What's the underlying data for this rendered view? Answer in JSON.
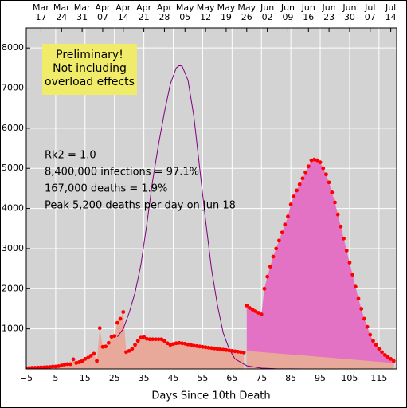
{
  "chart_data": {
    "type": "line",
    "xlabel": "Days Since 10th Death",
    "box_text": "Preliminary!\nNot including\noverload effects",
    "box_color": "#f0ec6a",
    "notes": [
      "Rk2 = 1.0",
      "8,400,000 infections = 97.1%",
      "167,000 deaths = 1.9%",
      "Peak 5,200 deaths per day on Jun 18"
    ],
    "xlim": [
      -5,
      121
    ],
    "ylim": [
      0,
      8500
    ],
    "xticks": [
      {
        "value": -5,
        "label": "−5"
      },
      5,
      15,
      25,
      35,
      45,
      55,
      65,
      75,
      85,
      95,
      105,
      115
    ],
    "yticks": [
      1000,
      2000,
      3000,
      4000,
      5000,
      6000,
      7000,
      8000
    ],
    "top_ticks": [
      {
        "value": 0,
        "label": "Mar\n17"
      },
      {
        "value": 7,
        "label": "Mar\n24"
      },
      {
        "value": 14,
        "label": "Mar\n31"
      },
      {
        "value": 21,
        "label": "Apr\n07"
      },
      {
        "value": 28,
        "label": "Apr\n14"
      },
      {
        "value": 35,
        "label": "Apr\n21"
      },
      {
        "value": 42,
        "label": "Apr\n28"
      },
      {
        "value": 49,
        "label": "May\n05"
      },
      {
        "value": 56,
        "label": "May\n12"
      },
      {
        "value": 63,
        "label": "May\n19"
      },
      {
        "value": 70,
        "label": "May\n26"
      },
      {
        "value": 77,
        "label": "Jun\n02"
      },
      {
        "value": 84,
        "label": "Jun\n09"
      },
      {
        "value": 91,
        "label": "Jun\n16"
      },
      {
        "value": 98,
        "label": "Jun\n23"
      },
      {
        "value": 105,
        "label": "Jun\n30"
      },
      {
        "value": 112,
        "label": "Jul\n07"
      },
      {
        "value": 119,
        "label": "Jul\n14"
      }
    ],
    "grid": true,
    "series": [
      {
        "kind": "area",
        "color": "#e8a89a",
        "marker_color": "#ff0000",
        "x": [
          -5,
          -4,
          -3,
          -2,
          -1,
          0,
          1,
          2,
          3,
          4,
          5,
          6,
          7,
          8,
          9,
          10,
          11,
          12,
          13,
          14,
          15,
          16,
          17,
          18,
          19,
          20,
          21,
          22,
          23,
          24,
          25,
          26,
          27,
          28,
          29,
          30,
          31,
          32,
          33,
          34,
          35,
          36,
          37,
          38,
          39,
          40,
          41,
          42,
          43,
          44,
          45,
          46,
          47,
          48,
          49,
          50,
          51,
          52,
          53,
          54,
          55,
          56,
          57,
          58,
          59,
          60,
          61,
          62,
          63,
          64,
          65,
          66,
          67,
          68,
          69
        ],
        "values": [
          20,
          25,
          30,
          30,
          35,
          40,
          40,
          45,
          50,
          60,
          60,
          70,
          90,
          110,
          120,
          120,
          240,
          150,
          170,
          200,
          250,
          280,
          330,
          380,
          200,
          1020,
          550,
          560,
          650,
          800,
          820,
          1150,
          1250,
          1420,
          420,
          450,
          500,
          600,
          700,
          780,
          800,
          750,
          740,
          740,
          740,
          740,
          740,
          700,
          640,
          600,
          620,
          640,
          650,
          640,
          630,
          610,
          600,
          580,
          570,
          560,
          550,
          540,
          530,
          520,
          510,
          500,
          490,
          480,
          470,
          460,
          450,
          440,
          430,
          420,
          410
        ]
      },
      {
        "kind": "area",
        "color": "#e472c4",
        "marker_color": "#ff0000",
        "x": [
          70,
          71,
          72,
          73,
          74,
          75,
          76,
          77,
          78,
          79,
          80,
          81,
          82,
          83,
          84,
          85,
          86,
          87,
          88,
          89,
          90,
          91,
          92,
          93,
          94,
          95,
          96,
          97,
          98,
          99,
          100,
          101,
          102,
          103,
          104,
          105,
          106,
          107,
          108,
          109,
          110,
          111,
          112,
          113,
          114,
          115,
          116,
          117,
          118,
          119,
          120
        ],
        "values": [
          1580,
          1520,
          1480,
          1440,
          1400,
          1360,
          2000,
          2300,
          2550,
          2800,
          3000,
          3200,
          3400,
          3600,
          3800,
          4100,
          4300,
          4450,
          4600,
          4750,
          4900,
          5050,
          5200,
          5220,
          5200,
          5150,
          5000,
          4850,
          4650,
          4400,
          4150,
          3850,
          3550,
          3250,
          2950,
          2650,
          2350,
          2050,
          1750,
          1500,
          1250,
          1050,
          850,
          700,
          600,
          500,
          420,
          350,
          300,
          250,
          200
        ]
      },
      {
        "kind": "base",
        "color": "#e8a89a",
        "x": [
          70,
          120
        ],
        "values": [
          450,
          150
        ]
      },
      {
        "kind": "line",
        "color": "#800080",
        "x": [
          26,
          28,
          30,
          32,
          34,
          36,
          38,
          40,
          42,
          44,
          46,
          47,
          48,
          50,
          52,
          54,
          56,
          58,
          60,
          62,
          64,
          66,
          70,
          75,
          80,
          90,
          120
        ],
        "values": [
          800,
          1000,
          1400,
          1900,
          2600,
          3600,
          4700,
          5600,
          6400,
          7100,
          7500,
          7560,
          7550,
          7200,
          6300,
          5000,
          3700,
          2500,
          1600,
          900,
          500,
          250,
          80,
          20,
          5,
          0,
          0
        ]
      }
    ]
  }
}
